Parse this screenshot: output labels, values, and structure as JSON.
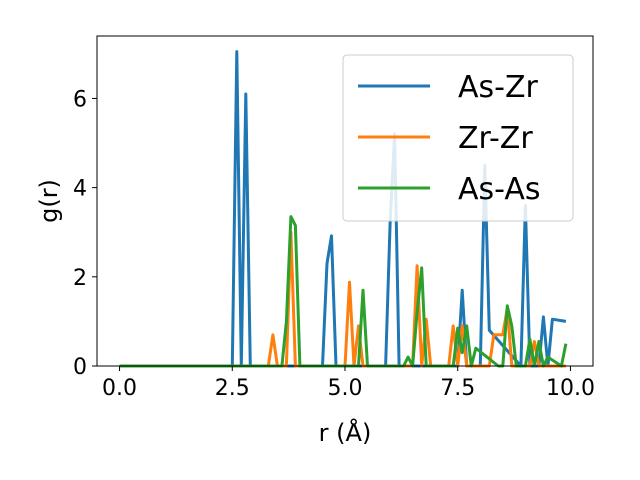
{
  "chart_data": {
    "type": "line",
    "xlabel": "r (Å)",
    "ylabel": "g(r)",
    "xlim": [
      -0.5,
      10.5
    ],
    "ylim": [
      0,
      7.4
    ],
    "x_ticks": [
      0.0,
      2.5,
      5.0,
      7.5,
      10.0
    ],
    "x_tick_labels": [
      "0.0",
      "2.5",
      "5.0",
      "7.5",
      "10.0"
    ],
    "y_ticks": [
      0,
      2,
      4,
      6
    ],
    "y_tick_labels": [
      "0",
      "2",
      "4",
      "6"
    ],
    "grid": false,
    "legend_position": "top-right",
    "series": [
      {
        "name": "As-Zr",
        "color": "#1f77b4",
        "x": [
          0.0,
          2.5,
          2.6,
          2.7,
          2.8,
          2.9,
          4.5,
          4.6,
          4.7,
          4.8,
          5.9,
          6.0,
          6.1,
          6.2,
          7.5,
          7.6,
          7.7,
          8.0,
          8.1,
          8.2,
          8.9,
          9.0,
          9.1,
          9.3,
          9.4,
          9.5,
          9.6,
          9.9
        ],
        "y": [
          0.0,
          0.0,
          7.05,
          0.0,
          6.1,
          0.0,
          0.0,
          2.3,
          2.92,
          0.0,
          0.0,
          3.2,
          5.2,
          0.0,
          0.0,
          1.7,
          0.0,
          0.0,
          4.5,
          0.8,
          0.0,
          3.6,
          0.0,
          0.0,
          1.1,
          0.0,
          1.05,
          1.0
        ]
      },
      {
        "name": "Zr-Zr",
        "color": "#ff7f0e",
        "x": [
          0.0,
          3.3,
          3.4,
          3.5,
          3.7,
          3.8,
          3.9,
          5.0,
          5.1,
          5.2,
          5.3,
          5.4,
          6.5,
          6.6,
          6.7,
          6.8,
          6.9,
          7.3,
          7.4,
          7.5,
          7.6,
          7.7,
          8.2,
          8.3,
          8.5,
          8.6,
          8.7,
          9.1,
          9.2,
          9.3,
          9.9
        ],
        "y": [
          0.0,
          0.0,
          0.7,
          0.0,
          0.0,
          3.0,
          0.0,
          0.0,
          1.88,
          0.0,
          0.9,
          0.0,
          0.0,
          2.25,
          0.0,
          1.05,
          0.0,
          0.0,
          0.9,
          0.0,
          0.9,
          0.0,
          0.0,
          0.7,
          0.7,
          1.3,
          0.0,
          0.0,
          0.55,
          0.0,
          0.0
        ]
      },
      {
        "name": "As-As",
        "color": "#2ca02c",
        "x": [
          0.0,
          3.6,
          3.7,
          3.8,
          3.9,
          4.0,
          5.3,
          5.4,
          5.5,
          6.3,
          6.4,
          6.5,
          6.6,
          6.7,
          6.8,
          7.4,
          7.5,
          7.6,
          7.7,
          7.8,
          7.9,
          8.4,
          8.5,
          8.6,
          8.7,
          8.8,
          9.0,
          9.1,
          9.2,
          9.3,
          9.4,
          9.5,
          9.8,
          9.9
        ],
        "y": [
          0.0,
          0.0,
          1.0,
          3.35,
          3.15,
          0.0,
          0.0,
          1.7,
          0.0,
          0.0,
          0.2,
          0.0,
          1.2,
          2.2,
          0.0,
          0.0,
          0.85,
          0.3,
          0.9,
          0.0,
          0.4,
          0.0,
          0.0,
          1.35,
          0.9,
          0.0,
          0.0,
          0.6,
          0.0,
          0.55,
          0.0,
          0.2,
          0.0,
          0.5
        ]
      }
    ]
  }
}
